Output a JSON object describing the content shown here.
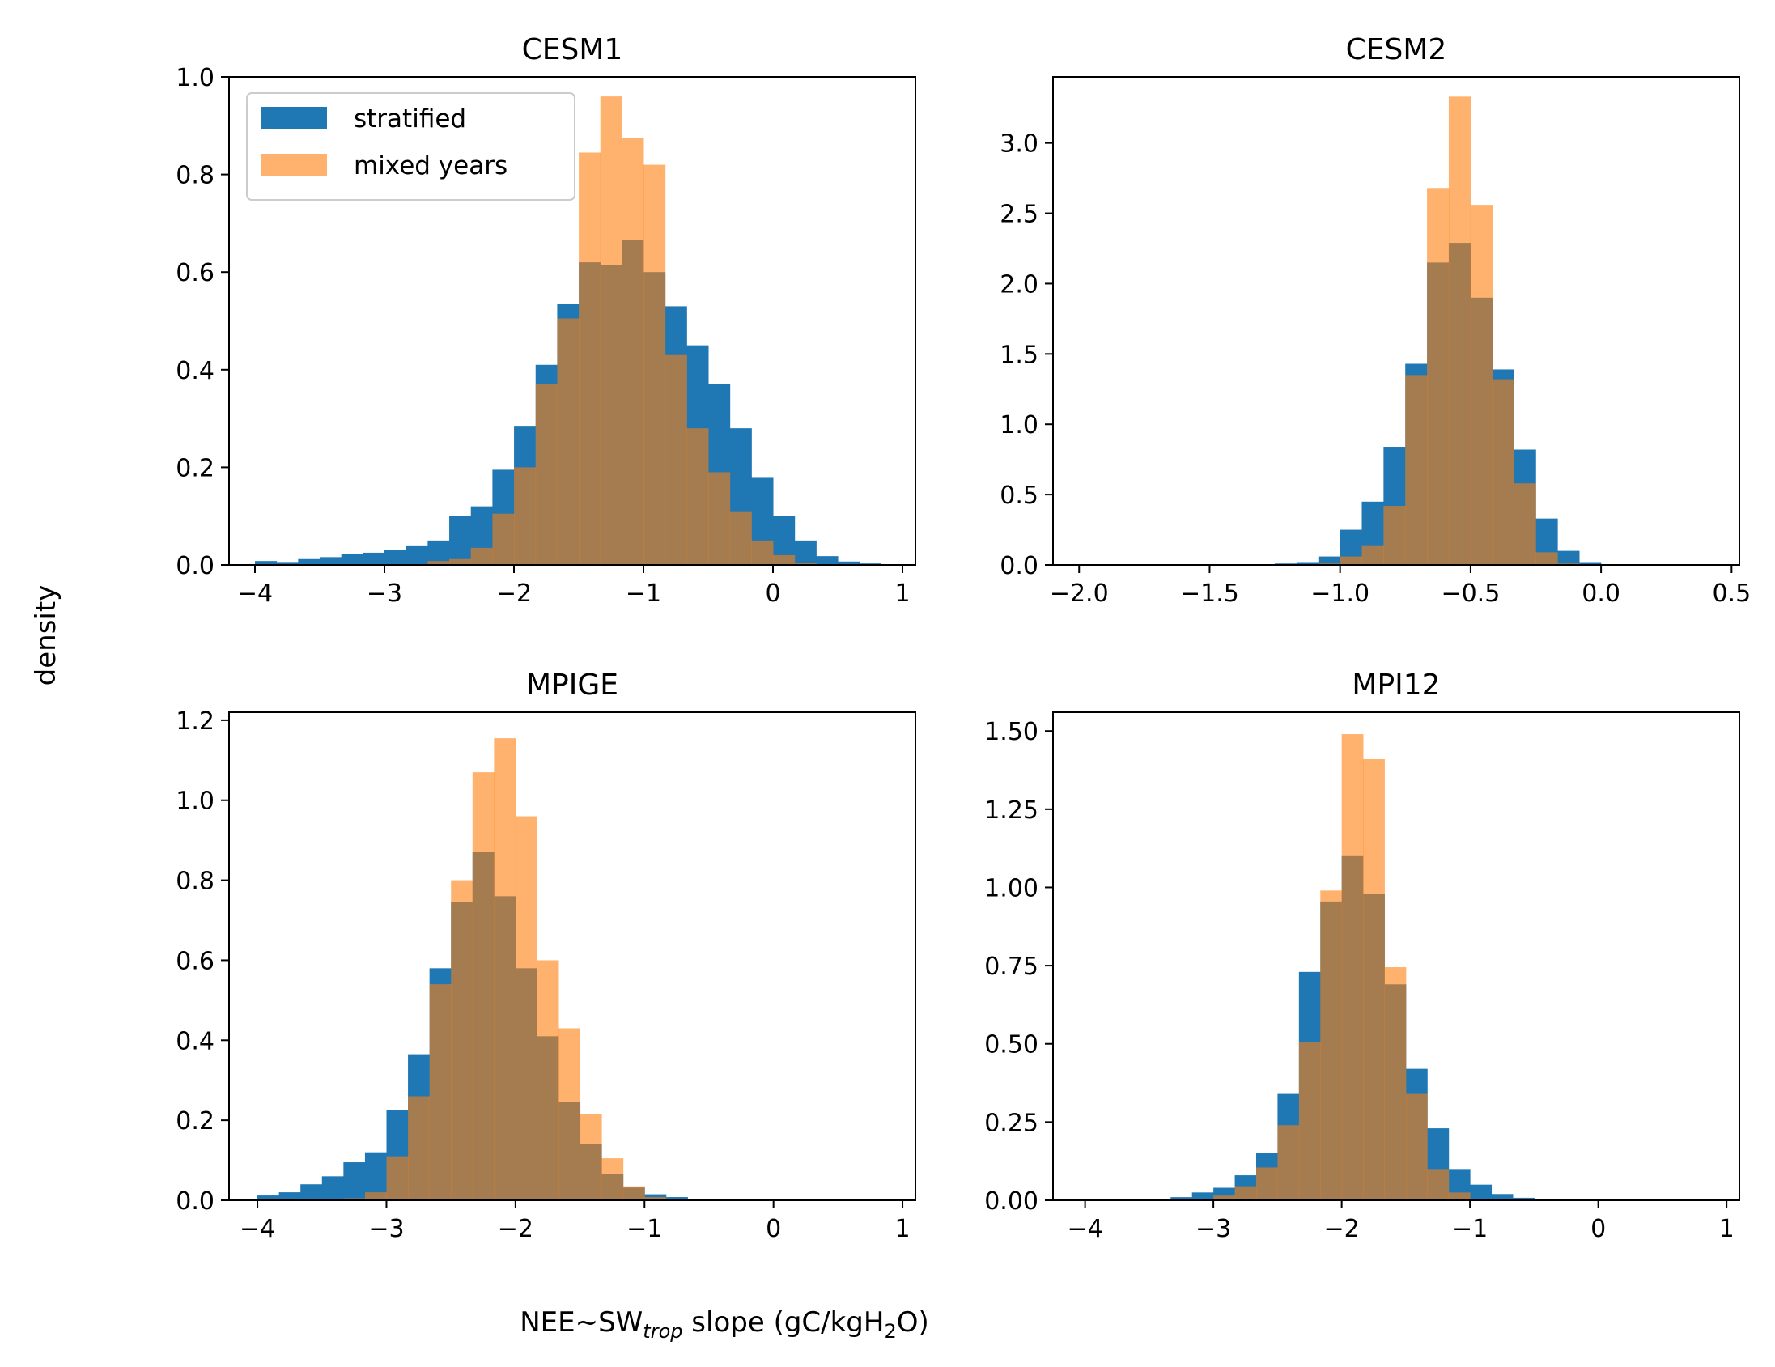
{
  "figure": {
    "ylabel": "density",
    "xlabel_main": "NEE~SW",
    "xlabel_sub": "trop",
    "xlabel_rest": " slope (gC/kgH",
    "xlabel_sub2": "2",
    "xlabel_end": "O)"
  },
  "legend": [
    {
      "label": "stratified",
      "color": "#1f77b4"
    },
    {
      "label": "mixed years",
      "color": "#ff7f0e"
    }
  ],
  "colors": {
    "stratified": "#1f77b4",
    "mixed": "#ff7f0e",
    "mixed_alpha": 0.6
  },
  "chart_data": [
    {
      "type": "bar",
      "title": "CESM1",
      "xlim": [
        -4.2,
        1.1
      ],
      "ylim": [
        0,
        1.0
      ],
      "xticks": [
        -4,
        -3,
        -2,
        -1,
        0,
        1
      ],
      "xtick_labels": [
        "−4",
        "−3",
        "−2",
        "−1",
        "0",
        "1"
      ],
      "yticks": [
        0.0,
        0.2,
        0.4,
        0.6,
        0.8,
        1.0
      ],
      "ytick_labels": [
        "0.0",
        "0.2",
        "0.4",
        "0.6",
        "0.8",
        "1.0"
      ],
      "bin_start": -4.0,
      "bin_width": 0.1667,
      "series": [
        {
          "name": "stratified",
          "values": [
            0.008,
            0.006,
            0.012,
            0.016,
            0.022,
            0.025,
            0.03,
            0.04,
            0.05,
            0.1,
            0.12,
            0.195,
            0.285,
            0.41,
            0.535,
            0.62,
            0.615,
            0.665,
            0.6,
            0.53,
            0.45,
            0.37,
            0.28,
            0.18,
            0.1,
            0.05,
            0.018,
            0.007,
            0.003
          ]
        },
        {
          "name": "mixed years",
          "values": [
            0.0,
            0.0,
            0.0,
            0.0,
            0.0,
            0.0,
            0.0,
            0.0,
            0.008,
            0.012,
            0.035,
            0.105,
            0.2,
            0.37,
            0.505,
            0.845,
            0.96,
            0.875,
            0.82,
            0.43,
            0.28,
            0.19,
            0.11,
            0.05,
            0.02,
            0.005,
            0.0,
            0.0,
            0.0
          ]
        }
      ]
    },
    {
      "type": "bar",
      "title": "CESM2",
      "xlim": [
        -2.1,
        0.53
      ],
      "ylim": [
        0,
        3.47
      ],
      "xticks": [
        -2.0,
        -1.5,
        -1.0,
        -0.5,
        0.0,
        0.5
      ],
      "xtick_labels": [
        "−2.0",
        "−1.5",
        "−1.0",
        "−0.5",
        "0.0",
        "0.5"
      ],
      "yticks": [
        0.0,
        0.5,
        1.0,
        1.5,
        2.0,
        2.5,
        3.0
      ],
      "ytick_labels": [
        "0.0",
        "0.5",
        "1.0",
        "1.5",
        "2.0",
        "2.5",
        "3.0"
      ],
      "bin_start": -1.25,
      "bin_width": 0.0833,
      "series": [
        {
          "name": "stratified",
          "values": [
            0.01,
            0.02,
            0.06,
            0.25,
            0.45,
            0.84,
            1.43,
            2.15,
            2.29,
            1.9,
            1.39,
            0.82,
            0.33,
            0.1,
            0.02
          ]
        },
        {
          "name": "mixed years",
          "values": [
            0.0,
            0.0,
            0.01,
            0.06,
            0.14,
            0.42,
            1.35,
            2.68,
            3.33,
            2.56,
            1.32,
            0.58,
            0.09,
            0.01,
            0.0
          ]
        }
      ]
    },
    {
      "type": "bar",
      "title": "MPIGE",
      "xlim": [
        -4.22,
        1.1
      ],
      "ylim": [
        0,
        1.22
      ],
      "xticks": [
        -4,
        -3,
        -2,
        -1,
        0,
        1
      ],
      "xtick_labels": [
        "−4",
        "−3",
        "−2",
        "−1",
        "0",
        "1"
      ],
      "yticks": [
        0.0,
        0.2,
        0.4,
        0.6,
        0.8,
        1.0,
        1.2
      ],
      "ytick_labels": [
        "0.0",
        "0.2",
        "0.4",
        "0.6",
        "0.8",
        "1.0",
        "1.2"
      ],
      "bin_start": -4.0,
      "bin_width": 0.1667,
      "series": [
        {
          "name": "stratified",
          "values": [
            0.012,
            0.02,
            0.04,
            0.06,
            0.095,
            0.12,
            0.225,
            0.365,
            0.58,
            0.745,
            0.87,
            0.76,
            0.58,
            0.41,
            0.245,
            0.14,
            0.065,
            0.032,
            0.015,
            0.008,
            0.0,
            0.0,
            0.0,
            0.0,
            0.0,
            0.0,
            0.0,
            0.0,
            0.0
          ]
        },
        {
          "name": "mixed years",
          "values": [
            0.0,
            0.0,
            0.0,
            0.0,
            0.005,
            0.02,
            0.11,
            0.26,
            0.54,
            0.8,
            1.07,
            1.155,
            0.96,
            0.6,
            0.43,
            0.215,
            0.105,
            0.035,
            0.008,
            0.0,
            0.0,
            0.0,
            0.0,
            0.0,
            0.0,
            0.0,
            0.0,
            0.0,
            0.0
          ]
        }
      ]
    },
    {
      "type": "bar",
      "title": "MPI12",
      "xlim": [
        -4.25,
        1.1
      ],
      "ylim": [
        0,
        1.56
      ],
      "xticks": [
        -4,
        -3,
        -2,
        -1,
        0,
        1
      ],
      "xtick_labels": [
        "−4",
        "−3",
        "−2",
        "−1",
        "0",
        "1"
      ],
      "yticks": [
        0.0,
        0.25,
        0.5,
        0.75,
        1.0,
        1.25,
        1.5
      ],
      "ytick_labels": [
        "0.00",
        "0.25",
        "0.50",
        "0.75",
        "1.00",
        "1.25",
        "1.50"
      ],
      "bin_start": -3.5,
      "bin_width": 0.1667,
      "series": [
        {
          "name": "stratified",
          "values": [
            0.003,
            0.01,
            0.025,
            0.04,
            0.08,
            0.15,
            0.34,
            0.73,
            0.955,
            1.1,
            0.98,
            0.69,
            0.42,
            0.23,
            0.1,
            0.05,
            0.02,
            0.008
          ]
        },
        {
          "name": "mixed years",
          "values": [
            0.0,
            0.0,
            0.0,
            0.015,
            0.045,
            0.105,
            0.24,
            0.505,
            0.99,
            1.49,
            1.41,
            0.745,
            0.34,
            0.1,
            0.025,
            0.005,
            0.0,
            0.0
          ]
        }
      ]
    }
  ]
}
